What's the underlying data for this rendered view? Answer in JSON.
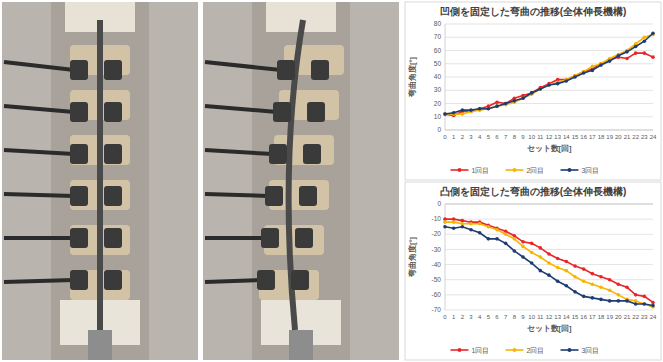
{
  "chart_data": [
    {
      "type": "line",
      "title": "凹側を固定した弯曲の推移(全体伸長機構)",
      "x_label": "セット数[回]",
      "y_label": "弯曲角度[°]",
      "categories": [
        "0",
        "1",
        "2",
        "3",
        "4",
        "5",
        "6",
        "7",
        "8",
        "9",
        "10",
        "11",
        "12",
        "13",
        "14",
        "15",
        "16",
        "17",
        "18",
        "19",
        "20",
        "21",
        "22",
        "23",
        "24"
      ],
      "ylim": [
        0,
        80
      ],
      "yticks": [
        0,
        10,
        20,
        30,
        40,
        50,
        60,
        70,
        80
      ],
      "grid": true,
      "legend": "bottom",
      "marker": "circle",
      "series": [
        {
          "name": "1回目",
          "color": "#e8262a",
          "values": [
            12,
            11,
            14,
            14,
            16,
            18,
            21,
            20,
            24,
            26,
            28,
            32,
            35,
            38,
            38,
            41,
            44,
            46,
            50,
            53,
            55,
            54,
            58,
            58,
            55
          ]
        },
        {
          "name": "2回目",
          "color": "#f7b500",
          "values": [
            12,
            12,
            12,
            14,
            15,
            16,
            18,
            19,
            21,
            24,
            27,
            31,
            34,
            36,
            38,
            41,
            44,
            48,
            50,
            54,
            57,
            60,
            65,
            70,
            72
          ]
        },
        {
          "name": "3回目",
          "color": "#1f3b73",
          "values": [
            12,
            13,
            15,
            15,
            16,
            16,
            18,
            20,
            22,
            24,
            28,
            31,
            34,
            35,
            37,
            40,
            43,
            45,
            49,
            52,
            56,
            59,
            63,
            67,
            73
          ]
        }
      ]
    },
    {
      "type": "line",
      "title": "凸側を固定した弯曲の推移(全体伸長機構)",
      "x_label": "セット数[回]",
      "y_label": "弯曲角度[°]",
      "categories": [
        "0",
        "1",
        "2",
        "3",
        "4",
        "5",
        "6",
        "7",
        "8",
        "9",
        "10",
        "11",
        "12",
        "13",
        "14",
        "15",
        "16",
        "17",
        "18",
        "19",
        "20",
        "21",
        "22",
        "23",
        "24"
      ],
      "ylim": [
        -70,
        0
      ],
      "yticks": [
        0,
        -10,
        -20,
        -30,
        -40,
        -50,
        -60,
        -70
      ],
      "grid": true,
      "legend": "bottom",
      "marker": "circle",
      "series": [
        {
          "name": "1回目",
          "color": "#e8262a",
          "values": [
            -10,
            -10,
            -11,
            -12,
            -12,
            -14,
            -16,
            -18,
            -21,
            -25,
            -26,
            -29,
            -33,
            -36,
            -38,
            -41,
            -43,
            -46,
            -48,
            -50,
            -53,
            -55,
            -60,
            -61,
            -65
          ]
        },
        {
          "name": "2回目",
          "color": "#f7b500",
          "values": [
            -12,
            -12,
            -13,
            -13,
            -13,
            -15,
            -17,
            -20,
            -23,
            -28,
            -32,
            -35,
            -39,
            -42,
            -44,
            -48,
            -51,
            -53,
            -55,
            -57,
            -60,
            -63,
            -64,
            -66,
            -68
          ]
        },
        {
          "name": "3回目",
          "color": "#1f3b73",
          "values": [
            -15,
            -16,
            -15,
            -17,
            -19,
            -23,
            -23,
            -26,
            -31,
            -35,
            -39,
            -44,
            -47,
            -51,
            -54,
            -58,
            -61,
            -62,
            -63,
            -64,
            -64,
            -64,
            -66,
            -66,
            -67
          ]
        }
      ]
    }
  ]
}
